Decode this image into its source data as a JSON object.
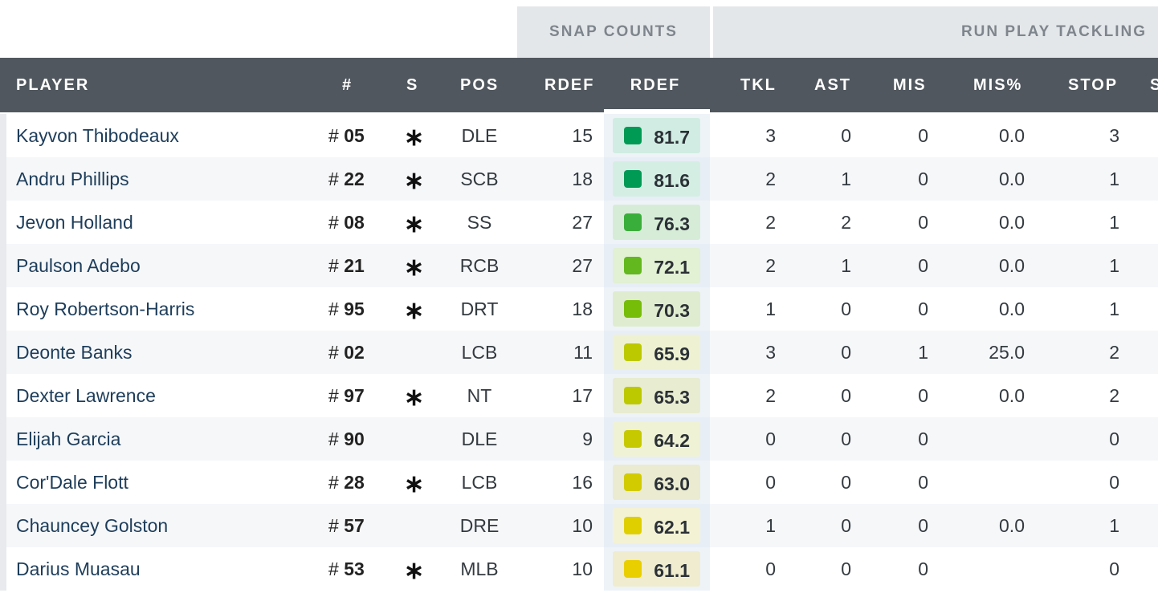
{
  "groups": {
    "snap_counts": "SNAP COUNTS",
    "run_play_tackling": "RUN PLAY TACKLING"
  },
  "headers": {
    "player": "PLAYER",
    "number": "#",
    "starter": "S",
    "pos": "POS",
    "rdef_snaps": "RDEF",
    "rdef_grade": "RDEF",
    "tkl": "TKL",
    "ast": "AST",
    "mis": "MIS",
    "mis_pct": "MIS%",
    "stop": "STOP",
    "next": "S"
  },
  "colors": {
    "header_bg": "#51575e",
    "group_bg": "#e4e7ea",
    "name_text": "#1d3d5a",
    "grade_green": "#00a650",
    "grade_yellow": "#e6d200"
  },
  "rows": [
    {
      "player": "Kayvon Thibodeaux",
      "jersey": "05",
      "starter": "∗",
      "pos": "DLE",
      "rdef": "15",
      "grade": "81.7",
      "grade_color": "#009a55",
      "chip_bg": "#d1ece2",
      "tkl": "3",
      "ast": "0",
      "mis": "0",
      "mis_pct": "0.0",
      "stop": "3"
    },
    {
      "player": "Andru Phillips",
      "jersey": "22",
      "starter": "∗",
      "pos": "SCB",
      "rdef": "18",
      "grade": "81.6",
      "grade_color": "#009a55",
      "chip_bg": "#d4eee4",
      "tkl": "2",
      "ast": "1",
      "mis": "0",
      "mis_pct": "0.0",
      "stop": "1"
    },
    {
      "player": "Jevon Holland",
      "jersey": "08",
      "starter": "∗",
      "pos": "SS",
      "rdef": "27",
      "grade": "76.3",
      "grade_color": "#3aae3a",
      "chip_bg": "#d6ecd7",
      "tkl": "2",
      "ast": "2",
      "mis": "0",
      "mis_pct": "0.0",
      "stop": "1"
    },
    {
      "player": "Paulson Adebo",
      "jersey": "21",
      "starter": "∗",
      "pos": "RCB",
      "rdef": "27",
      "grade": "72.1",
      "grade_color": "#62b81e",
      "chip_bg": "#e2f0d4",
      "tkl": "2",
      "ast": "1",
      "mis": "0",
      "mis_pct": "0.0",
      "stop": "1"
    },
    {
      "player": "Roy Robertson-Harris",
      "jersey": "95",
      "starter": "∗",
      "pos": "DRT",
      "rdef": "18",
      "grade": "70.3",
      "grade_color": "#76bd0a",
      "chip_bg": "#e0eccf",
      "tkl": "1",
      "ast": "0",
      "mis": "0",
      "mis_pct": "0.0",
      "stop": "1"
    },
    {
      "player": "Deonte Banks",
      "jersey": "02",
      "starter": "",
      "pos": "LCB",
      "rdef": "11",
      "grade": "65.9",
      "grade_color": "#bcc900",
      "chip_bg": "#eef2d2",
      "tkl": "3",
      "ast": "0",
      "mis": "1",
      "mis_pct": "25.0",
      "stop": "2"
    },
    {
      "player": "Dexter Lawrence",
      "jersey": "97",
      "starter": "∗",
      "pos": "NT",
      "rdef": "17",
      "grade": "65.3",
      "grade_color": "#bcc900",
      "chip_bg": "#e8ecd0",
      "tkl": "2",
      "ast": "0",
      "mis": "0",
      "mis_pct": "0.0",
      "stop": "2"
    },
    {
      "player": "Elijah Garcia",
      "jersey": "90",
      "starter": "",
      "pos": "DLE",
      "rdef": "9",
      "grade": "64.2",
      "grade_color": "#c7c900",
      "chip_bg": "#eff2d4",
      "tkl": "0",
      "ast": "0",
      "mis": "0",
      "mis_pct": "",
      "stop": "0"
    },
    {
      "player": "Cor'Dale Flott",
      "jersey": "28",
      "starter": "∗",
      "pos": "LCB",
      "rdef": "16",
      "grade": "63.0",
      "grade_color": "#d2cb00",
      "chip_bg": "#eaebd0",
      "tkl": "0",
      "ast": "0",
      "mis": "0",
      "mis_pct": "",
      "stop": "0"
    },
    {
      "player": "Chauncey Golston",
      "jersey": "57",
      "starter": "",
      "pos": "DRE",
      "rdef": "10",
      "grade": "62.1",
      "grade_color": "#e0cf00",
      "chip_bg": "#f3f2d4",
      "tkl": "1",
      "ast": "0",
      "mis": "0",
      "mis_pct": "0.0",
      "stop": "1"
    },
    {
      "player": "Darius Muasau",
      "jersey": "53",
      "starter": "∗",
      "pos": "MLB",
      "rdef": "10",
      "grade": "61.1",
      "grade_color": "#eacf00",
      "chip_bg": "#efeccf",
      "tkl": "0",
      "ast": "0",
      "mis": "0",
      "mis_pct": "",
      "stop": "0"
    }
  ]
}
